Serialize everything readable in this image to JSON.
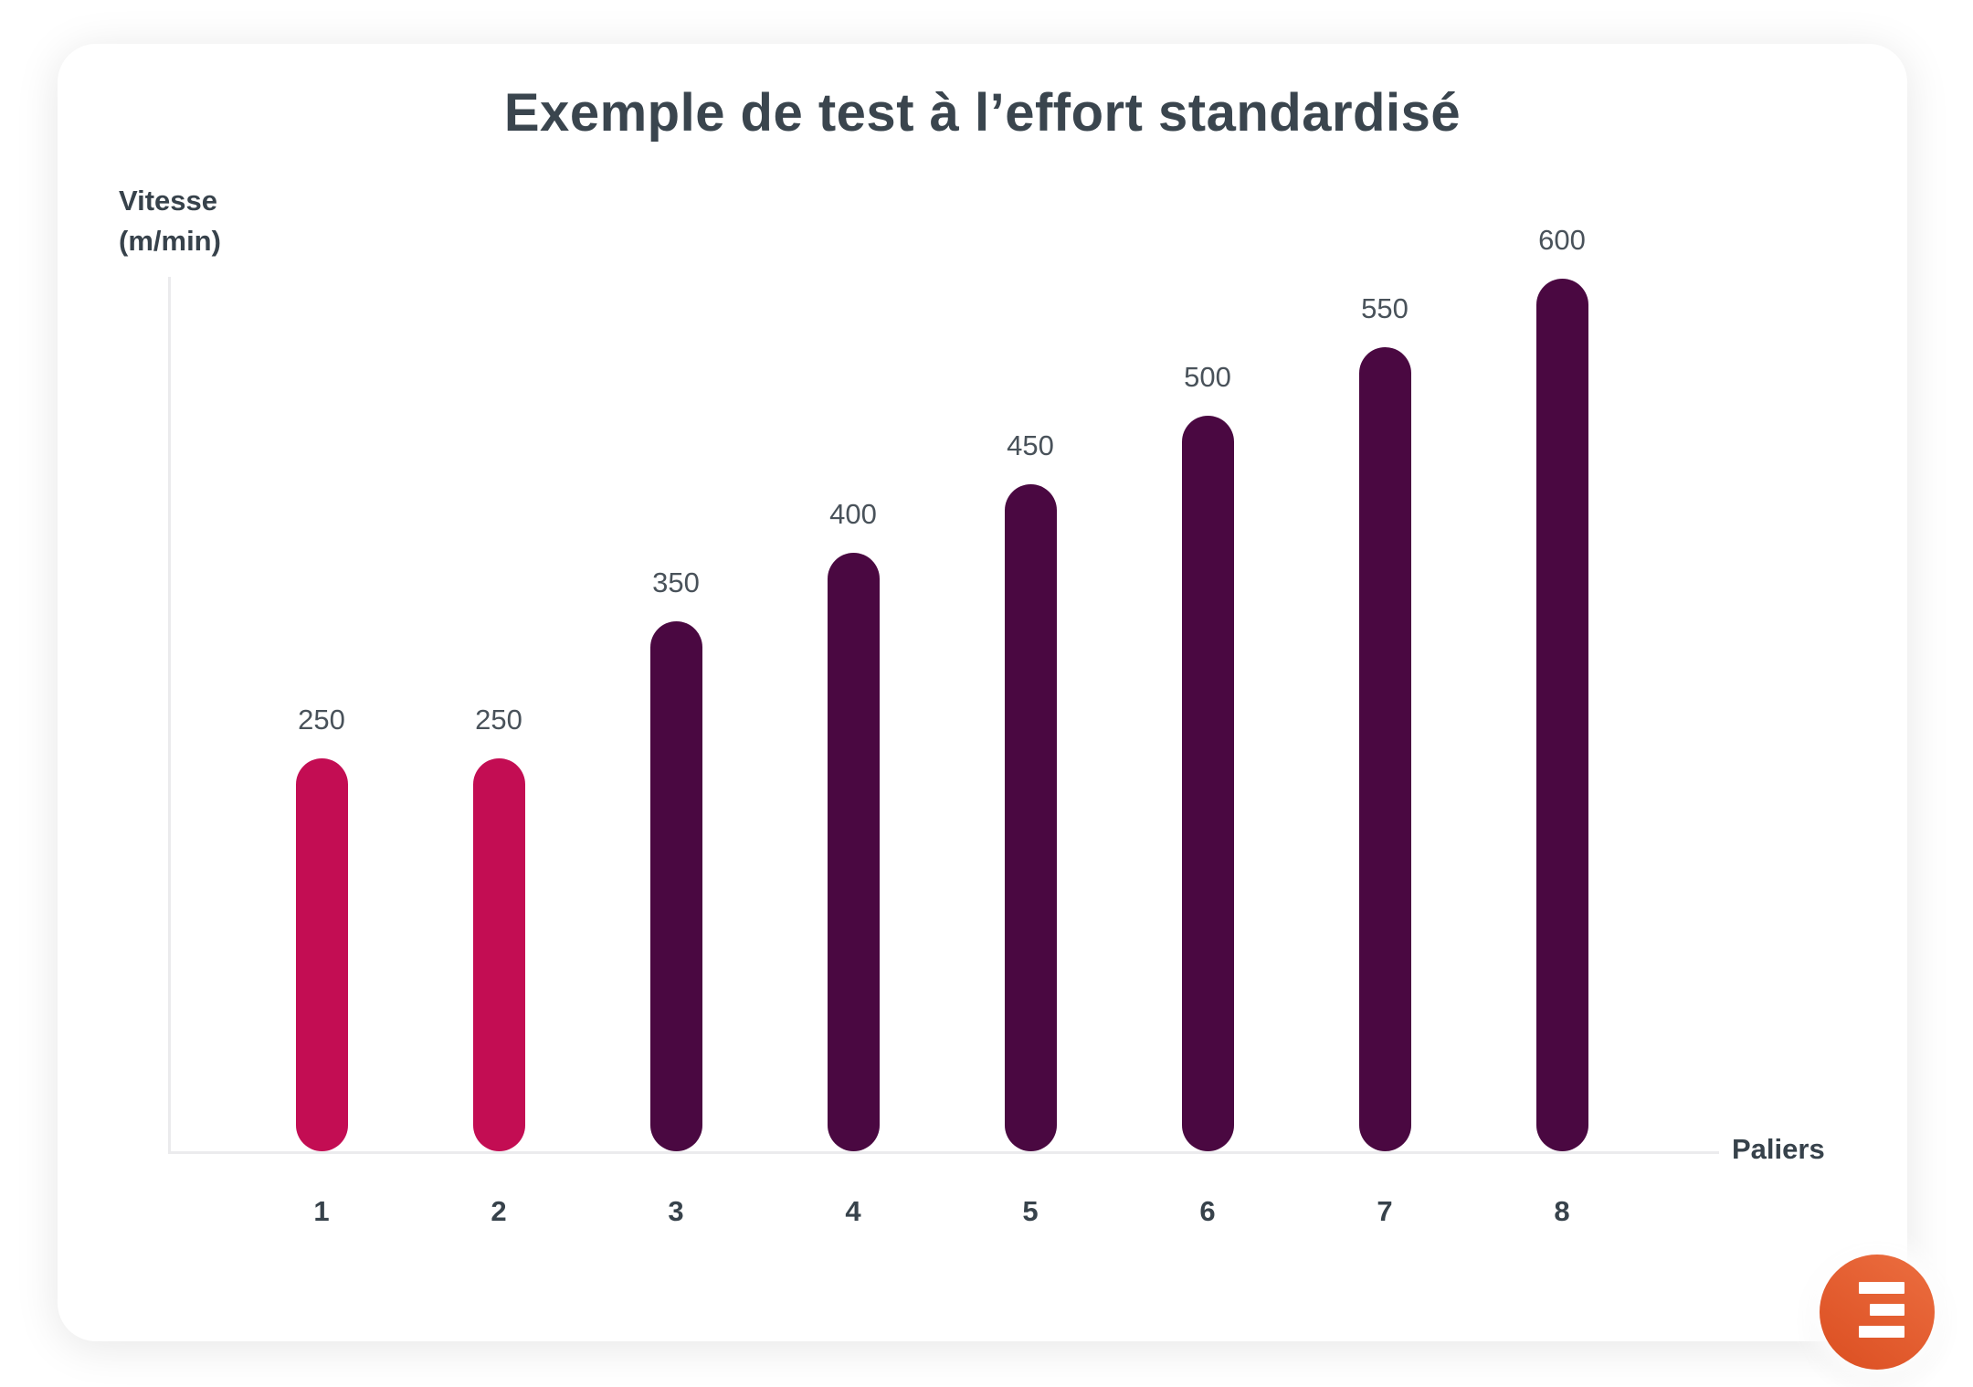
{
  "chart_data": {
    "type": "bar",
    "title": "Exemple de test à l’effort standardisé",
    "xlabel": "Paliers",
    "ylabel": "Vitesse (m/min)",
    "ylabel_lines": {
      "line1": "Vitesse",
      "line2": "(m/min)"
    },
    "categories": [
      "1",
      "2",
      "3",
      "4",
      "5",
      "6",
      "7",
      "8"
    ],
    "values": [
      250,
      250,
      350,
      400,
      450,
      500,
      550,
      600
    ],
    "value_labels": [
      "250",
      "250",
      "350",
      "400",
      "450",
      "500",
      "550",
      "600"
    ],
    "ylim": [
      0,
      600
    ],
    "grid": false,
    "legend": null,
    "colors": {
      "highlight": "#C30D53",
      "default": "#4A0841",
      "axis": "#EBEBED",
      "title_text": "#3A454E",
      "value_label_text": "#49525A",
      "tick_label_text": "#37424B"
    },
    "highlighted_bars": [
      0,
      1
    ]
  },
  "logo": {
    "icon": "three-bars-icon",
    "shape": "circle",
    "gradient_start": "#EC6E40",
    "gradient_end": "#DB4E21",
    "glyph_color": "#FFFFFF"
  },
  "card": {
    "background": "#FFFFFF"
  }
}
